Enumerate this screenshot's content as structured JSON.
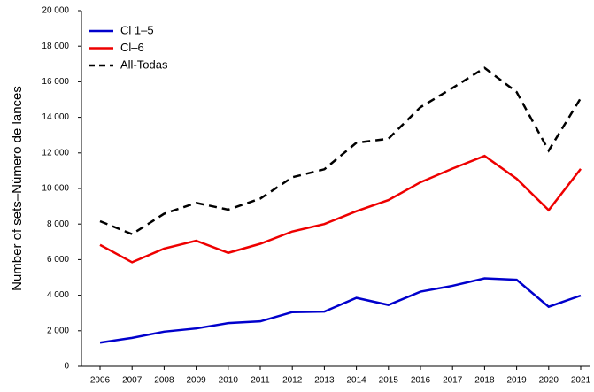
{
  "chart_data": {
    "type": "line",
    "y_label": "Number of sets–Número de lances",
    "categories": [
      "2006",
      "2007",
      "2008",
      "2009",
      "2010",
      "2011",
      "2012",
      "2013",
      "2014",
      "2015",
      "2016",
      "2017",
      "2018",
      "2019",
      "2020",
      "2021"
    ],
    "series": [
      {
        "name": "Cl 1–5",
        "color": "#0000cc",
        "linestyle": "solid",
        "values": [
          1330,
          1600,
          1950,
          2130,
          2430,
          2530,
          3050,
          3080,
          3850,
          3450,
          4200,
          4530,
          4950,
          4870,
          3350,
          3980
        ]
      },
      {
        "name": "Cl–6",
        "color": "#ee0000",
        "linestyle": "solid",
        "values": [
          6830,
          5850,
          6620,
          7060,
          6380,
          6890,
          7580,
          8000,
          8720,
          9350,
          10350,
          11120,
          11830,
          10550,
          8780,
          11100
        ]
      },
      {
        "name": "All-Todas",
        "color": "#000000",
        "linestyle": "dashed",
        "values": [
          8160,
          7430,
          8580,
          9190,
          8810,
          9430,
          10630,
          11080,
          12570,
          12800,
          14570,
          15650,
          16780,
          15420,
          12130,
          15080
        ]
      }
    ],
    "ylim": [
      0,
      20000
    ],
    "yticks": [
      0,
      {
        "value": 2000,
        "label": "2 000"
      },
      {
        "value": 4000,
        "label": "4 000"
      },
      {
        "value": 6000,
        "label": "6 000"
      },
      {
        "value": 8000,
        "label": "8 000"
      },
      {
        "value": 10000,
        "label": "10 000"
      },
      {
        "value": 12000,
        "label": "12 000"
      },
      {
        "value": 14000,
        "label": "14 000"
      },
      {
        "value": 16000,
        "label": "16 000"
      },
      {
        "value": 18000,
        "label": "18 000"
      },
      {
        "value": 20000,
        "label": "20 000"
      }
    ],
    "legend": "upper left"
  }
}
